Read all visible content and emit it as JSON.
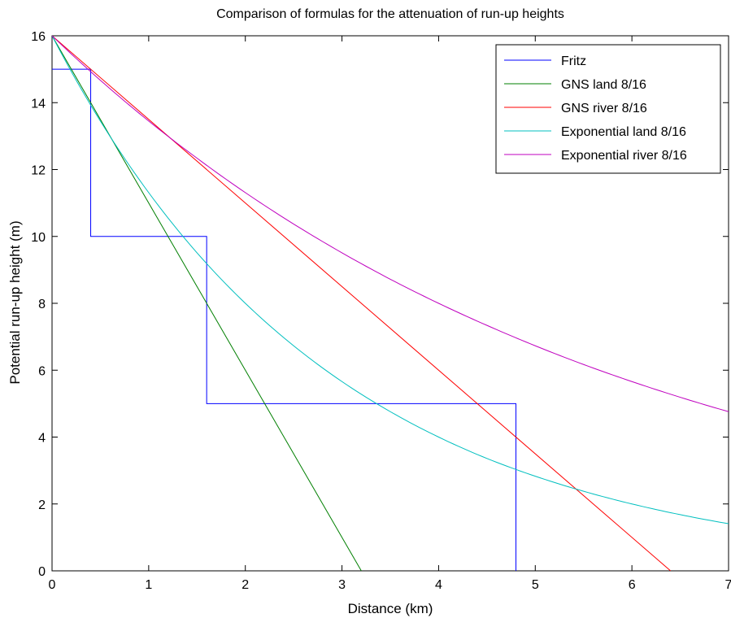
{
  "chart_data": {
    "type": "line",
    "title": "Comparison of formulas for the attenuation of run-up heights",
    "xlabel": "Distance (km)",
    "ylabel": "Potential run-up height (m)",
    "xlim": [
      0,
      7
    ],
    "ylim": [
      0,
      16
    ],
    "xticks": [
      0,
      1,
      2,
      3,
      4,
      5,
      6,
      7
    ],
    "yticks": [
      0,
      2,
      4,
      6,
      8,
      10,
      12,
      14,
      16
    ],
    "grid": false,
    "legend_position": "top-right",
    "series": [
      {
        "name": "Fritz",
        "color": "#0000ff",
        "x": [
          0,
          0.4,
          0.4,
          1.6,
          1.6,
          4.8,
          4.8
        ],
        "y": [
          15,
          15,
          10,
          10,
          5,
          5,
          0
        ]
      },
      {
        "name": "GNS land 8/16",
        "color": "#007f00",
        "x": [
          0,
          3.2
        ],
        "y": [
          16,
          0
        ]
      },
      {
        "name": "GNS river 8/16",
        "color": "#ff0000",
        "x": [
          0,
          6.4
        ],
        "y": [
          16,
          0
        ]
      },
      {
        "name": "Exponential land 8/16",
        "color": "#00bfbf",
        "x": [
          0,
          0.5,
          1,
          1.5,
          2,
          2.5,
          3,
          3.5,
          4,
          4.5,
          5,
          5.5,
          6,
          6.5,
          7
        ],
        "y": [
          16,
          13.45,
          11.31,
          9.51,
          8.0,
          6.73,
          5.66,
          4.76,
          4.0,
          3.36,
          2.83,
          2.38,
          2.0,
          1.68,
          1.41
        ]
      },
      {
        "name": "Exponential river 8/16",
        "color": "#bf00bf",
        "x": [
          0,
          0.5,
          1,
          1.5,
          2,
          2.5,
          3,
          3.5,
          4,
          4.5,
          5,
          5.5,
          6,
          6.5,
          7
        ],
        "y": [
          16,
          14.67,
          13.45,
          12.34,
          11.31,
          10.37,
          9.51,
          8.72,
          8.0,
          7.34,
          6.73,
          6.17,
          5.66,
          5.19,
          4.76
        ]
      }
    ]
  }
}
